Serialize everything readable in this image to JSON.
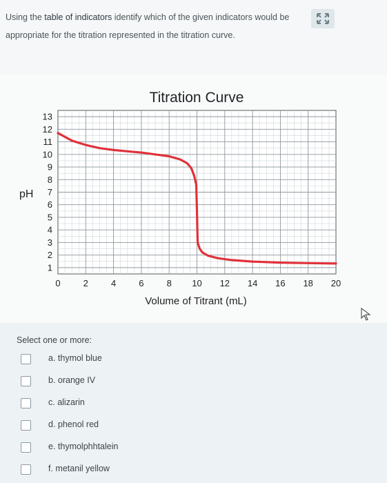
{
  "question": {
    "text_before": "Using the ",
    "link_text": "table of indicators",
    "text_after": " identify which of the given indicators would be appropriate for the titration represented in the titration curve."
  },
  "expand_icon": "expand-arrows-icon",
  "answer": {
    "prompt": "Select one or more:",
    "options": [
      {
        "label": "a. thymol blue",
        "checked": false
      },
      {
        "label": "b. orange IV",
        "checked": false
      },
      {
        "label": "c. alizarin",
        "checked": false
      },
      {
        "label": "d. phenol red",
        "checked": false
      },
      {
        "label": "e. thymolphhtalein",
        "checked": false
      },
      {
        "label": "f. metanil yellow",
        "checked": false
      }
    ]
  },
  "chart_data": {
    "type": "line",
    "title": "Titration Curve",
    "xlabel": "Volume of Titrant (mL)",
    "ylabel": "pH",
    "x_ticks": [
      "0",
      "2",
      "4",
      "6",
      "8",
      "10",
      "12",
      "14",
      "16",
      "18",
      "20"
    ],
    "y_ticks": [
      "1",
      "2",
      "3",
      "4",
      "5",
      "6",
      "7",
      "8",
      "9",
      "10",
      "11",
      "12",
      "13"
    ],
    "xlim": [
      0,
      20
    ],
    "ylim": [
      0.5,
      13.5
    ],
    "grid": true,
    "series": [
      {
        "color": "#e0313a",
        "x": [
          0,
          0.5,
          1,
          2,
          3,
          4,
          5,
          6,
          7,
          8,
          8.8,
          9.3,
          9.6,
          9.8,
          9.95,
          10,
          10.05,
          10.2,
          10.4,
          10.8,
          11.5,
          12.5,
          14,
          16,
          18,
          20
        ],
        "y": [
          11.7,
          11.4,
          11.1,
          10.75,
          10.5,
          10.35,
          10.25,
          10.15,
          10.0,
          9.85,
          9.6,
          9.3,
          8.9,
          8.3,
          7.6,
          5.5,
          3.0,
          2.5,
          2.2,
          1.95,
          1.75,
          1.6,
          1.48,
          1.4,
          1.36,
          1.33
        ]
      }
    ]
  }
}
